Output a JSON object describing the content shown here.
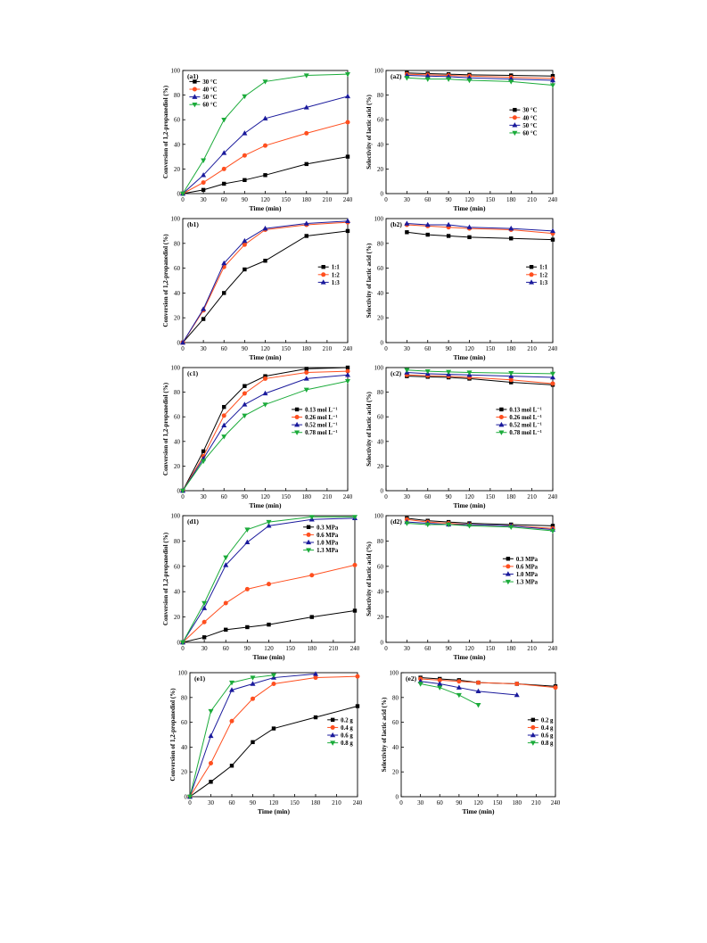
{
  "chart_data": [
    {
      "id": "a1",
      "type": "line",
      "panel_label": "(a1)",
      "xlabel": "Time (min)",
      "ylabel": "Conversion of 1,2-propanediol  (%)",
      "xlim": [
        0,
        240
      ],
      "ylim": [
        0,
        100
      ],
      "xticks": [
        0,
        30,
        60,
        90,
        120,
        150,
        180,
        210,
        240
      ],
      "yticks": [
        0,
        20,
        40,
        60,
        80,
        100
      ],
      "legend_position": "top-left",
      "x": [
        0,
        30,
        60,
        90,
        120,
        180,
        240
      ],
      "series": [
        {
          "name": "30 °C",
          "color": "#000000",
          "marker": "square",
          "values": [
            0,
            3,
            8,
            11,
            15,
            24,
            30
          ]
        },
        {
          "name": "40 °C",
          "color": "#ff4f1f",
          "marker": "circle",
          "values": [
            0,
            9,
            20,
            31,
            39,
            49,
            58
          ]
        },
        {
          "name": "50 °C",
          "color": "#1a1a9c",
          "marker": "triangle-up",
          "values": [
            0,
            15,
            33,
            49,
            61,
            70,
            79
          ]
        },
        {
          "name": "60 °C",
          "color": "#1bab3a",
          "marker": "triangle-down",
          "values": [
            0,
            27,
            60,
            79,
            91,
            96,
            97
          ]
        }
      ]
    },
    {
      "id": "a2",
      "type": "line",
      "panel_label": "(a2)",
      "xlabel": "Time (min)",
      "ylabel": "Selectivity of lactic acid  (%)",
      "xlim": [
        0,
        240
      ],
      "ylim": [
        0,
        100
      ],
      "xticks": [
        0,
        30,
        60,
        90,
        120,
        150,
        180,
        210,
        240
      ],
      "yticks": [
        0,
        20,
        40,
        60,
        80,
        100
      ],
      "legend_position": "middle-right",
      "x": [
        30,
        60,
        90,
        120,
        180,
        240
      ],
      "series": [
        {
          "name": "30 °C",
          "color": "#000000",
          "marker": "square",
          "values": [
            98,
            97.5,
            97,
            96.5,
            96,
            95.5
          ]
        },
        {
          "name": "40 °C",
          "color": "#ff4f1f",
          "marker": "circle",
          "values": [
            97,
            96.5,
            96,
            95.5,
            94.5,
            93.5
          ]
        },
        {
          "name": "50 °C",
          "color": "#1a1a9c",
          "marker": "triangle-up",
          "values": [
            96,
            95.5,
            95,
            94,
            93,
            92
          ]
        },
        {
          "name": "60 °C",
          "color": "#1bab3a",
          "marker": "triangle-down",
          "values": [
            94,
            93,
            93,
            92,
            91,
            88
          ]
        }
      ]
    },
    {
      "id": "b1",
      "type": "line",
      "panel_label": "(b1)",
      "xlabel": "Time (min)",
      "ylabel": "Conversion of 1,2-propanediol  (%)",
      "xlim": [
        0,
        240
      ],
      "ylim": [
        0,
        100
      ],
      "xticks": [
        0,
        30,
        60,
        90,
        120,
        150,
        180,
        210,
        240
      ],
      "yticks": [
        0,
        20,
        40,
        60,
        80,
        100
      ],
      "legend_position": "middle-right",
      "x": [
        0,
        30,
        60,
        90,
        120,
        180,
        240
      ],
      "series": [
        {
          "name": "1:1",
          "color": "#000000",
          "marker": "square",
          "values": [
            0,
            19,
            40,
            59,
            66,
            86,
            90
          ]
        },
        {
          "name": "1:2",
          "color": "#ff4f1f",
          "marker": "circle",
          "values": [
            0,
            26,
            61,
            79,
            91,
            95,
            97
          ]
        },
        {
          "name": "1:3",
          "color": "#1a1a9c",
          "marker": "triangle-up",
          "values": [
            0,
            27,
            64,
            82,
            92,
            96,
            98
          ]
        }
      ]
    },
    {
      "id": "b2",
      "type": "line",
      "panel_label": "(b2)",
      "xlabel": "Time (min)",
      "ylabel": "Selectivity of lactic acid  (%)",
      "xlim": [
        0,
        240
      ],
      "ylim": [
        0,
        100
      ],
      "xticks": [
        0,
        30,
        60,
        90,
        120,
        150,
        180,
        210,
        240
      ],
      "yticks": [
        0,
        20,
        40,
        60,
        80,
        100
      ],
      "legend_position": "middle-right",
      "x": [
        30,
        60,
        90,
        120,
        180,
        240
      ],
      "series": [
        {
          "name": "1:1",
          "color": "#000000",
          "marker": "square",
          "values": [
            89,
            87,
            86,
            85,
            84,
            83
          ]
        },
        {
          "name": "1:2",
          "color": "#ff4f1f",
          "marker": "circle",
          "values": [
            95,
            94,
            93,
            92,
            91,
            88
          ]
        },
        {
          "name": "1:3",
          "color": "#1a1a9c",
          "marker": "triangle-up",
          "values": [
            96,
            95,
            95,
            93,
            92,
            90
          ]
        }
      ]
    },
    {
      "id": "c1",
      "type": "line",
      "panel_label": "(c1)",
      "xlabel": "Time (min)",
      "ylabel": "Conversion of 1,2-propanediol  (%)",
      "xlim": [
        0,
        240
      ],
      "ylim": [
        0,
        100
      ],
      "xticks": [
        0,
        30,
        60,
        90,
        120,
        150,
        180,
        210,
        240
      ],
      "yticks": [
        0,
        20,
        40,
        60,
        80,
        100
      ],
      "legend_position": "middle-right",
      "x": [
        0,
        30,
        60,
        90,
        120,
        180,
        240
      ],
      "series": [
        {
          "name": "0.13 mol L⁻¹",
          "color": "#000000",
          "marker": "square",
          "values": [
            0,
            32,
            68,
            85,
            93,
            99,
            100
          ]
        },
        {
          "name": "0.26 mol L⁻¹",
          "color": "#ff4f1f",
          "marker": "circle",
          "values": [
            0,
            28,
            61,
            79,
            91,
            96,
            97
          ]
        },
        {
          "name": "0.52 mol L⁻¹",
          "color": "#1a1a9c",
          "marker": "triangle-up",
          "values": [
            0,
            26,
            53,
            70,
            79,
            91,
            94
          ]
        },
        {
          "name": "0.78 mol L⁻¹",
          "color": "#1bab3a",
          "marker": "triangle-down",
          "values": [
            0,
            24,
            44,
            61,
            70,
            82,
            89
          ]
        }
      ]
    },
    {
      "id": "c2",
      "type": "line",
      "panel_label": "(c2)",
      "xlabel": "Time (min)",
      "ylabel": "Selectivity of lactic acid  (%)",
      "xlim": [
        0,
        240
      ],
      "ylim": [
        0,
        100
      ],
      "xticks": [
        0,
        30,
        60,
        90,
        120,
        150,
        180,
        210,
        240
      ],
      "yticks": [
        0,
        20,
        40,
        60,
        80,
        100
      ],
      "legend_position": "middle-right",
      "x": [
        30,
        60,
        90,
        120,
        180,
        240
      ],
      "series": [
        {
          "name": "0.13 mol L⁻¹",
          "color": "#000000",
          "marker": "square",
          "values": [
            93,
            92.5,
            92,
            91,
            88,
            86
          ]
        },
        {
          "name": "0.26 mol L⁻¹",
          "color": "#ff4f1f",
          "marker": "circle",
          "values": [
            94,
            93.5,
            93,
            92,
            90,
            87
          ]
        },
        {
          "name": "0.52 mol L⁻¹",
          "color": "#1a1a9c",
          "marker": "triangle-up",
          "values": [
            96,
            95,
            94.5,
            94,
            93,
            92
          ]
        },
        {
          "name": "0.78 mol L⁻¹",
          "color": "#1bab3a",
          "marker": "triangle-down",
          "values": [
            98,
            97,
            96.5,
            96,
            95.5,
            95
          ]
        }
      ]
    },
    {
      "id": "d1",
      "type": "line",
      "panel_label": "(d1)",
      "xlabel": "Time (min)",
      "ylabel": "Conversion of 1,2-propanediol  (%)",
      "xlim": [
        0,
        240
      ],
      "ylim": [
        0,
        100
      ],
      "xticks": [
        0,
        30,
        60,
        90,
        120,
        150,
        180,
        210,
        240
      ],
      "yticks": [
        0,
        20,
        40,
        60,
        80,
        100
      ],
      "legend_position": "top-right",
      "x": [
        0,
        30,
        60,
        90,
        120,
        180,
        240
      ],
      "series": [
        {
          "name": "0.3 MPa",
          "color": "#000000",
          "marker": "square",
          "values": [
            0,
            4,
            10,
            12,
            14,
            20,
            25
          ]
        },
        {
          "name": "0.6 MPa",
          "color": "#ff4f1f",
          "marker": "circle",
          "values": [
            0,
            16,
            31,
            42,
            46,
            53,
            61
          ]
        },
        {
          "name": "1.0 MPa",
          "color": "#1a1a9c",
          "marker": "triangle-up",
          "values": [
            0,
            27,
            61,
            79,
            92,
            97,
            98
          ]
        },
        {
          "name": "1.3 MPa",
          "color": "#1bab3a",
          "marker": "triangle-down",
          "values": [
            0,
            31,
            67,
            89,
            95,
            99,
            99
          ]
        }
      ]
    },
    {
      "id": "d2",
      "type": "line",
      "panel_label": "(d2)",
      "xlabel": "Time (min)",
      "ylabel": "Selectivity of lactic acid  (%)",
      "xlim": [
        0,
        240
      ],
      "ylim": [
        0,
        100
      ],
      "xticks": [
        0,
        30,
        60,
        90,
        120,
        150,
        180,
        210,
        240
      ],
      "yticks": [
        0,
        20,
        40,
        60,
        80,
        100
      ],
      "legend_position": "middle-right",
      "x": [
        30,
        60,
        90,
        120,
        180,
        240
      ],
      "series": [
        {
          "name": "0.3 MPa",
          "color": "#000000",
          "marker": "square",
          "values": [
            98,
            96,
            95,
            94,
            93,
            92
          ]
        },
        {
          "name": "0.6 MPa",
          "color": "#ff4f1f",
          "marker": "circle",
          "values": [
            97,
            95,
            94,
            93,
            92,
            90
          ]
        },
        {
          "name": "1.0 MPa",
          "color": "#1a1a9c",
          "marker": "triangle-up",
          "values": [
            95,
            94,
            93,
            93,
            92,
            89
          ]
        },
        {
          "name": "1.3 MPa",
          "color": "#1bab3a",
          "marker": "triangle-down",
          "values": [
            94,
            93,
            93,
            92,
            91,
            88
          ]
        }
      ]
    },
    {
      "id": "e1",
      "type": "line",
      "panel_label": "(e1)",
      "xlabel": "Time (min)",
      "ylabel": "Conversion of 1,2-propanediol  (%)",
      "xlim": [
        0,
        240
      ],
      "ylim": [
        0,
        100
      ],
      "xticks": [
        0,
        30,
        60,
        90,
        120,
        150,
        180,
        210,
        240
      ],
      "yticks": [
        0,
        20,
        40,
        60,
        80,
        100
      ],
      "legend_position": "middle-right",
      "series": [
        {
          "name": "0.2 g",
          "color": "#000000",
          "marker": "square",
          "x": [
            0,
            30,
            60,
            90,
            120,
            180,
            240
          ],
          "values": [
            0,
            12,
            25,
            44,
            55,
            64,
            73
          ]
        },
        {
          "name": "0.4 g",
          "color": "#ff4f1f",
          "marker": "circle",
          "x": [
            0,
            30,
            60,
            90,
            120,
            180,
            240
          ],
          "values": [
            0,
            27,
            61,
            79,
            91,
            96,
            97
          ]
        },
        {
          "name": "0.6 g",
          "color": "#1a1a9c",
          "marker": "triangle-up",
          "x": [
            0,
            30,
            60,
            90,
            120,
            180
          ],
          "values": [
            0,
            49,
            86,
            91,
            96,
            99
          ]
        },
        {
          "name": "0.8 g",
          "color": "#1bab3a",
          "marker": "triangle-down",
          "x": [
            0,
            30,
            60,
            90,
            120
          ],
          "values": [
            0,
            69,
            92,
            96,
            98
          ]
        }
      ]
    },
    {
      "id": "e2",
      "type": "line",
      "panel_label": "(e2)",
      "xlabel": "Time (min)",
      "ylabel": "Selectivity of lactic acid  (%)",
      "xlim": [
        0,
        240
      ],
      "ylim": [
        0,
        100
      ],
      "xticks": [
        0,
        30,
        60,
        90,
        120,
        150,
        180,
        210,
        240
      ],
      "yticks": [
        0,
        20,
        40,
        60,
        80,
        100
      ],
      "legend_position": "middle-right",
      "series": [
        {
          "name": "0.2 g",
          "color": "#000000",
          "marker": "square",
          "x": [
            30,
            60,
            90,
            120,
            180,
            240
          ],
          "values": [
            96,
            95,
            94,
            92,
            91,
            89
          ]
        },
        {
          "name": "0.4 g",
          "color": "#ff4f1f",
          "marker": "circle",
          "x": [
            30,
            60,
            90,
            120,
            180,
            240
          ],
          "values": [
            95,
            94,
            93,
            92,
            91,
            88
          ]
        },
        {
          "name": "0.6 g",
          "color": "#1a1a9c",
          "marker": "triangle-up",
          "x": [
            30,
            60,
            90,
            120,
            180
          ],
          "values": [
            93,
            91,
            88,
            85,
            82
          ]
        },
        {
          "name": "0.8 g",
          "color": "#1bab3a",
          "marker": "triangle-down",
          "x": [
            30,
            60,
            90,
            120
          ],
          "values": [
            91,
            88,
            82,
            74
          ]
        }
      ]
    }
  ]
}
